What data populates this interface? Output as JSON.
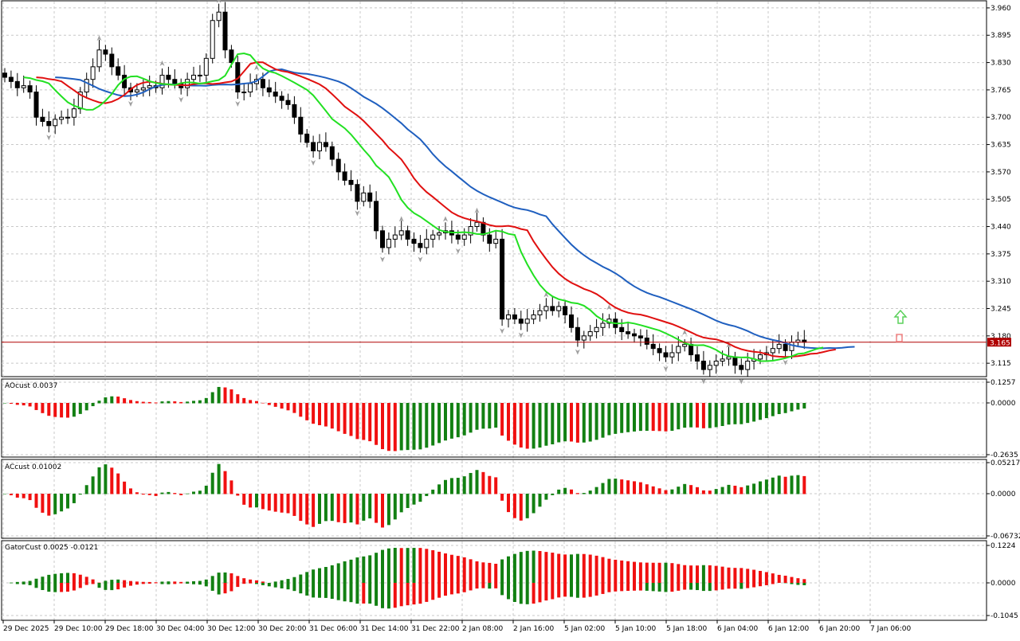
{
  "chart": {
    "symbol_price_tag": "3.165",
    "colors": {
      "background": "#ffffff",
      "grid": "#c8c8c8",
      "bull_candle": "#ffffff",
      "bear_candle": "#000000",
      "jaw": "#1f5fbf",
      "teeth": "#e01010",
      "lips": "#22e022",
      "bid_line": "#b00000",
      "fractal": "#a0a0a0",
      "osc_up": "#128012",
      "osc_down": "#f01010",
      "buy_arrow": "#5ad05a",
      "sell_arrow": "#f08080"
    }
  },
  "price_axis": {
    "ticks": [
      "3.960",
      "3.895",
      "3.830",
      "3.765",
      "3.700",
      "3.635",
      "3.570",
      "3.505",
      "3.440",
      "3.375",
      "3.310",
      "3.245",
      "3.180",
      "3.115"
    ]
  },
  "time_axis": {
    "ticks": [
      "29 Dec 2025",
      "29 Dec 10:00",
      "29 Dec 18:00",
      "30 Dec 04:00",
      "30 Dec 12:00",
      "30 Dec 20:00",
      "31 Dec 06:00",
      "31 Dec 14:00",
      "31 Dec 22:00",
      "2 Jan 08:00",
      "2 Jan 16:00",
      "5 Jan 02:00",
      "5 Jan 10:00",
      "5 Jan 18:00",
      "6 Jan 04:00",
      "6 Jan 12:00",
      "6 Jan 20:00",
      "7 Jan 06:00"
    ]
  },
  "indicators": {
    "ao": {
      "label": "AOcust 0.0037",
      "ticks": [
        "0.1257",
        "0.0000",
        "-0.2635"
      ]
    },
    "ac": {
      "label": "ACcust 0.01002",
      "ticks": [
        "0.05217",
        "0.0000",
        "-0.06732"
      ]
    },
    "gator": {
      "label": "GatorCust 0.0025 -0.0121",
      "ticks": [
        "0.1224",
        "0.0000",
        "-0.1045"
      ]
    }
  },
  "chart_data": {
    "type": "candlestick",
    "price_range": [
      3.085,
      3.975
    ],
    "current_price": 3.165,
    "close": [
      3.795,
      3.785,
      3.77,
      3.775,
      3.76,
      3.7,
      3.69,
      3.68,
      3.695,
      3.7,
      3.7,
      3.72,
      3.76,
      3.79,
      3.82,
      3.86,
      3.85,
      3.82,
      3.8,
      3.77,
      3.76,
      3.765,
      3.77,
      3.775,
      3.77,
      3.8,
      3.79,
      3.78,
      3.77,
      3.79,
      3.8,
      3.8,
      3.84,
      3.93,
      3.95,
      3.86,
      3.83,
      3.76,
      3.76,
      3.78,
      3.79,
      3.77,
      3.76,
      3.75,
      3.74,
      3.73,
      3.7,
      3.66,
      3.64,
      3.62,
      3.64,
      3.63,
      3.6,
      3.57,
      3.55,
      3.54,
      3.5,
      3.52,
      3.5,
      3.43,
      3.39,
      3.41,
      3.42,
      3.43,
      3.41,
      3.4,
      3.39,
      3.41,
      3.42,
      3.425,
      3.43,
      3.42,
      3.41,
      3.42,
      3.44,
      3.45,
      3.42,
      3.4,
      3.41,
      3.22,
      3.23,
      3.22,
      3.21,
      3.22,
      3.23,
      3.24,
      3.25,
      3.24,
      3.25,
      3.23,
      3.2,
      3.17,
      3.18,
      3.19,
      3.2,
      3.21,
      3.22,
      3.2,
      3.19,
      3.185,
      3.18,
      3.175,
      3.16,
      3.15,
      3.14,
      3.13,
      3.14,
      3.155,
      3.16,
      3.135,
      3.12,
      3.1,
      3.11,
      3.12,
      3.125,
      3.13,
      3.11,
      3.1,
      3.12,
      3.125,
      3.135,
      3.14,
      3.15,
      3.16,
      3.145,
      3.165,
      3.17,
      3.165
    ]
  }
}
